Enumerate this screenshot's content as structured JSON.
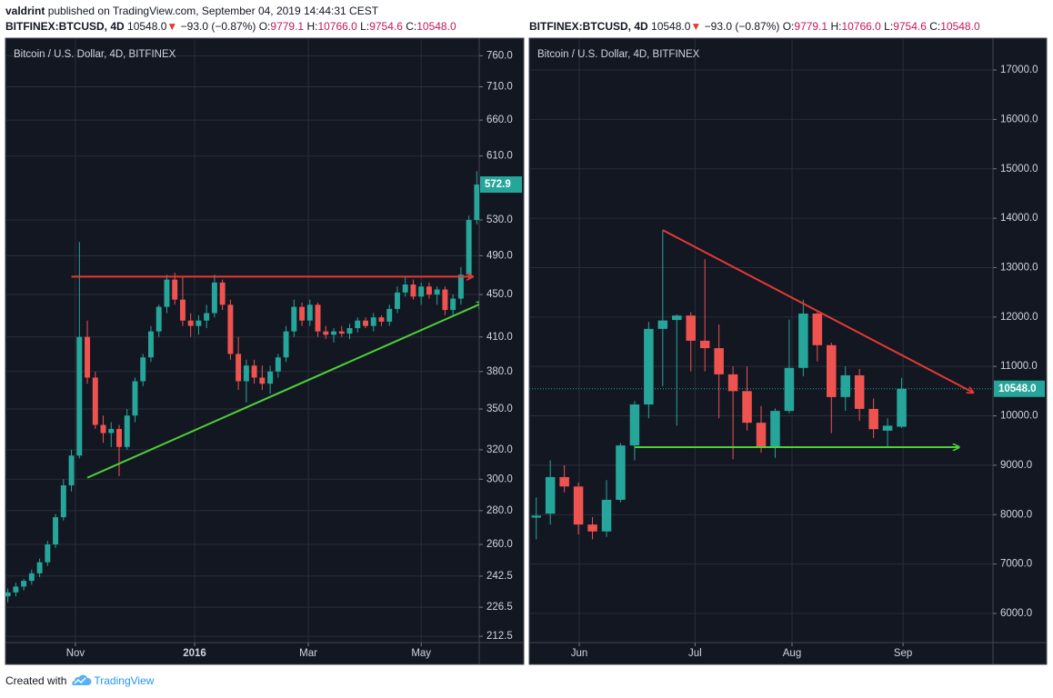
{
  "header": {
    "publisher": "valdrint",
    "published": "published on TradingView.com, September 04, 2019 14:44:31 CEST"
  },
  "footer": {
    "created": "Created with",
    "brand": "TradingView"
  },
  "chart_data": [
    {
      "type": "candlestick",
      "title": "Bitcoin / U.S. Dollar, 4D, BITFINEX",
      "symbol": "BITFINEX:BTCUSD, 4D",
      "price": "10548.0",
      "change_arrow": "▼",
      "change": "−93.0 (−0.87%)",
      "ohlc": [
        {
          "label": "O:",
          "value": "9779.1"
        },
        {
          "label": "H:",
          "value": "10766.0"
        },
        {
          "label": "L:",
          "value": "9754.6"
        },
        {
          "label": "C:",
          "value": "10548.0"
        }
      ],
      "log_scale": true,
      "grid": true,
      "up_color": "#26a69a",
      "down_color": "#ef5350",
      "xlim": [
        -0.3,
        59.3
      ],
      "xticks": [
        {
          "value": 8.5,
          "label": "Nov"
        },
        {
          "value": 23.5,
          "label": "2016",
          "bold": true
        },
        {
          "value": 37.8,
          "label": "Mar"
        },
        {
          "value": 52,
          "label": "May"
        }
      ],
      "ylim": [
        209.6,
        790
      ],
      "yticks": [
        {
          "value": 760,
          "label": "760.0"
        },
        {
          "value": 710,
          "label": "710.0"
        },
        {
          "value": 660,
          "label": "660.0"
        },
        {
          "value": 610,
          "label": "610.0"
        },
        {
          "value": 530,
          "label": "530.0"
        },
        {
          "value": 490,
          "label": "490.0"
        },
        {
          "value": 450,
          "label": "450.0"
        },
        {
          "value": 410,
          "label": "410.0"
        },
        {
          "value": 380,
          "label": "380.0"
        },
        {
          "value": 350,
          "label": "350.0"
        },
        {
          "value": 320,
          "label": "320.0"
        },
        {
          "value": 300,
          "label": "300.0"
        },
        {
          "value": 280,
          "label": "280.0"
        },
        {
          "value": 260,
          "label": "260.0"
        },
        {
          "value": 242.5,
          "label": "242.5"
        },
        {
          "value": 226.5,
          "label": "226.5"
        },
        {
          "value": 212.5,
          "label": "212.5"
        }
      ],
      "last_price": {
        "value": 572.9,
        "label": "572.9"
      },
      "open": [
        232,
        234,
        237,
        240,
        244,
        250,
        260,
        276,
        296,
        316,
        410,
        375,
        338,
        332,
        335,
        322,
        345,
        372,
        392,
        415,
        438,
        465,
        445,
        425,
        420,
        425,
        432,
        462,
        440,
        395,
        372,
        385,
        375,
        370,
        380,
        392,
        415,
        438,
        425,
        440,
        415,
        412,
        415,
        413,
        418,
        425,
        420,
        428,
        424,
        436,
        452,
        460,
        448,
        458,
        450,
        455,
        435,
        446,
        470,
        530
      ],
      "high": [
        236,
        239,
        241,
        246,
        252,
        262,
        278,
        300,
        320,
        505,
        425,
        380,
        345,
        340,
        338,
        350,
        375,
        395,
        420,
        440,
        470,
        472,
        468,
        432,
        430,
        440,
        470,
        465,
        445,
        410,
        390,
        390,
        385,
        385,
        395,
        420,
        445,
        442,
        445,
        442,
        420,
        418,
        420,
        422,
        428,
        428,
        432,
        430,
        440,
        458,
        468,
        465,
        462,
        462,
        458,
        458,
        450,
        478,
        535,
        590
      ],
      "low": [
        229,
        232,
        235,
        238,
        242,
        248,
        258,
        274,
        292,
        314,
        370,
        335,
        325,
        322,
        302,
        320,
        340,
        368,
        388,
        410,
        432,
        440,
        420,
        410,
        412,
        418,
        428,
        435,
        390,
        365,
        355,
        370,
        365,
        362,
        375,
        388,
        410,
        420,
        420,
        410,
        408,
        405,
        410,
        408,
        414,
        418,
        415,
        420,
        420,
        432,
        448,
        445,
        440,
        446,
        440,
        430,
        430,
        440,
        465,
        525
      ],
      "close": [
        234,
        237,
        240,
        244,
        250,
        260,
        276,
        296,
        316,
        410,
        375,
        338,
        332,
        335,
        322,
        345,
        372,
        392,
        415,
        438,
        465,
        445,
        425,
        420,
        425,
        432,
        462,
        440,
        395,
        372,
        385,
        375,
        370,
        380,
        392,
        415,
        438,
        425,
        440,
        415,
        412,
        415,
        413,
        418,
        425,
        420,
        428,
        424,
        436,
        452,
        460,
        448,
        458,
        450,
        455,
        435,
        446,
        470,
        530,
        572.9
      ],
      "lines": [
        {
          "color": "#e53935",
          "x": [
            8,
            58.5
          ],
          "y": [
            468,
            468
          ]
        },
        {
          "color": "#4cd137",
          "x": [
            10,
            59.8
          ],
          "y": [
            301,
            442
          ]
        }
      ]
    },
    {
      "type": "candlestick",
      "title": "Bitcoin / U.S. Dollar, 4D, BITFINEX",
      "symbol": "BITFINEX:BTCUSD, 4D",
      "price": "10548.0",
      "change_arrow": "▼",
      "change": "−93.0 (−0.87%)",
      "ohlc": [
        {
          "label": "O:",
          "value": "9779.1"
        },
        {
          "label": "H:",
          "value": "10766.0"
        },
        {
          "label": "L:",
          "value": "9754.6"
        },
        {
          "label": "C:",
          "value": "10548.0"
        }
      ],
      "log_scale": false,
      "grid": true,
      "up_color": "#26a69a",
      "down_color": "#ef5350",
      "xlim": [
        -0.5,
        32.5
      ],
      "xticks": [
        {
          "value": 3.06,
          "label": "Jun"
        },
        {
          "value": 11.3,
          "label": "Jul"
        },
        {
          "value": 18.2,
          "label": "Aug"
        },
        {
          "value": 26.1,
          "label": "Sep"
        }
      ],
      "ylim": [
        5411,
        17644
      ],
      "yticks": [
        {
          "value": 17000,
          "label": "17000.0"
        },
        {
          "value": 16000,
          "label": "16000.0"
        },
        {
          "value": 15000,
          "label": "15000.0"
        },
        {
          "value": 14000,
          "label": "14000.0"
        },
        {
          "value": 13000,
          "label": "13000.0"
        },
        {
          "value": 12000,
          "label": "12000.0"
        },
        {
          "value": 11000,
          "label": "11000.0"
        },
        {
          "value": 10000,
          "label": "10000.0"
        },
        {
          "value": 9000,
          "label": "9000.0"
        },
        {
          "value": 8000,
          "label": "8000.0"
        },
        {
          "value": 7000,
          "label": "7000.0"
        },
        {
          "value": 6000,
          "label": "6000.0"
        }
      ],
      "last_price": {
        "value": 10548,
        "label": "10548.0"
      },
      "open": [
        7940,
        8020,
        8760,
        8570,
        7800,
        7660,
        8300,
        9400,
        10230,
        11760,
        11940,
        12030,
        11520,
        11370,
        10840,
        10500,
        9860,
        9350,
        10100,
        10970,
        12070,
        11430,
        10380,
        10820,
        10140,
        9700,
        9779.1
      ],
      "high": [
        8350,
        9100,
        9000,
        8650,
        7950,
        8700,
        9450,
        10300,
        11900,
        13760,
        12050,
        12100,
        13170,
        11850,
        11000,
        11000,
        10200,
        10150,
        11950,
        12350,
        12100,
        11480,
        11000,
        10950,
        10350,
        9950,
        10766
      ],
      "low": [
        7500,
        7800,
        8450,
        7600,
        7500,
        7550,
        8250,
        9100,
        9950,
        10600,
        9800,
        10900,
        10900,
        9950,
        9120,
        9700,
        9250,
        9150,
        10050,
        10800,
        11100,
        9650,
        10100,
        9900,
        9550,
        9350,
        9754.6
      ],
      "close": [
        7980,
        8760,
        8570,
        7800,
        7660,
        8300,
        9400,
        10230,
        11760,
        11930,
        12030,
        11520,
        11370,
        10840,
        10500,
        9860,
        9350,
        10100,
        10970,
        12070,
        11430,
        10380,
        10820,
        10140,
        9730,
        9800,
        10548
      ],
      "lines": [
        {
          "color": "#e53935",
          "x": [
            9,
            31.1
          ],
          "y": [
            13760,
            10470
          ]
        },
        {
          "color": "#4cd137",
          "x": [
            7,
            30.1
          ],
          "y": [
            9366,
            9366
          ]
        }
      ]
    }
  ]
}
